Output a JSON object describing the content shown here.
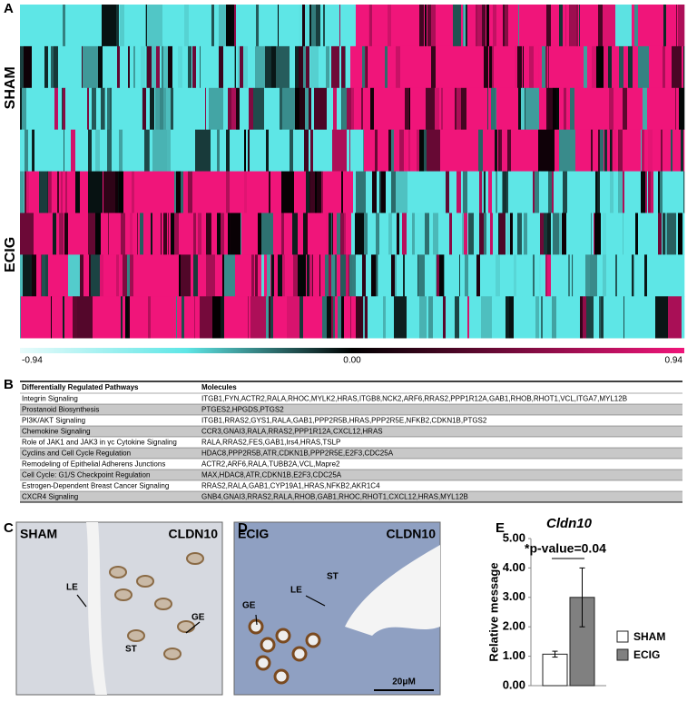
{
  "figure": {
    "panel_labels": [
      "A",
      "B",
      "C",
      "D",
      "E"
    ],
    "heatmap": {
      "row_groups": [
        "SHAM",
        "ECIG"
      ],
      "colorbar_ticks": [
        "-0.94",
        "0.00",
        "0.94"
      ]
    },
    "table": {
      "header": [
        "Differentially Regulated Pathways",
        "Molecules"
      ],
      "rows": [
        [
          "Integrin Signaling",
          "ITGB1,FYN,ACTR2,RALA,RHOC,MYLK2,HRAS,ITGB8,NCK2,ARF6,RRAS2,PPP1R12A,GAB1,RHOB,RHOT1,VCL,ITGA7,MYL12B"
        ],
        [
          "Prostanoid Biosynthesis",
          "PTGES2,HPGDS,PTGS2"
        ],
        [
          "PI3K/AKT Signaling",
          "ITGB1,RRAS2,GYS1,RALA,GAB1,PPP2R5B,HRAS,PPP2R5E,NFKB2,CDKN1B,PTGS2"
        ],
        [
          "Chemokine Signaling",
          "CCR3,GNAI3,RALA,RRAS2,PPP1R12A,CXCL12,HRAS"
        ],
        [
          "Role of JAK1 and JAK3 in γc Cytokine Signaling",
          "RALA,RRAS2,FES,GAB1,Irs4,HRAS,TSLP"
        ],
        [
          "Cyclins and Cell Cycle Regulation",
          "HDAC8,PPP2R5B,ATR,CDKN1B,PPP2R5E,E2F3,CDC25A"
        ],
        [
          "Remodeling of Epithelial Adherens Junctions",
          "ACTR2,ARF6,RALA,TUBB2A,VCL,Mapre2"
        ],
        [
          "Cell Cycle: G1/S Checkpoint Regulation",
          "MAX,HDAC8,ATR,CDKN1B,E2F3,CDC25A"
        ],
        [
          "Estrogen-Dependent Breast Cancer Signaling",
          "RRAS2,RALA,GAB1,CYP19A1,HRAS,NFKB2,AKR1C4"
        ],
        [
          "CXCR4 Signaling",
          "GNB4,GNAI3,RRAS2,RALA,RHOB,GAB1,RHOC,RHOT1,CXCL12,HRAS,MYL12B"
        ]
      ]
    },
    "micrograph_c": {
      "group": "SHAM",
      "stain": "CLDN10",
      "labels": [
        "LE",
        "ST",
        "GE"
      ]
    },
    "micrograph_d": {
      "group": "ECIG",
      "stain": "CLDN10",
      "labels": [
        "ST",
        "LE",
        "GE"
      ],
      "scale_bar": "20μM"
    }
  },
  "chart_data": {
    "type": "bar",
    "title": "Cldn10",
    "y_label": "Relative message",
    "annotation": "*p-value=0.04",
    "series": [
      {
        "name": "SHAM",
        "color": "#ffffff",
        "values": [
          1.07
        ],
        "errors": [
          0.1
        ]
      },
      {
        "name": "ECIG",
        "color": "#808080",
        "values": [
          3.0
        ],
        "errors": [
          1.0
        ]
      }
    ],
    "ylim": [
      0,
      5
    ],
    "yticks": [
      {
        "value": 0,
        "label": "0.00"
      },
      {
        "value": 1,
        "label": "1.00"
      },
      {
        "value": 2,
        "label": "2.00"
      },
      {
        "value": 3,
        "label": "3.00"
      },
      {
        "value": 4,
        "label": "4.00"
      },
      {
        "value": 5,
        "label": "5.00"
      }
    ]
  }
}
